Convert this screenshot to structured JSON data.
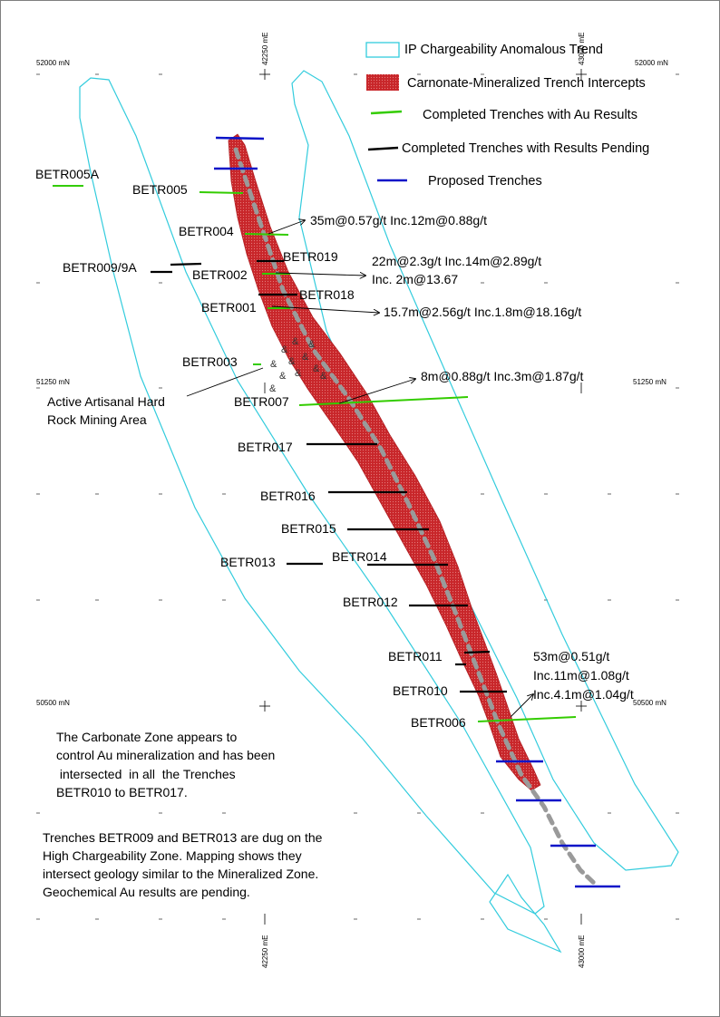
{
  "colors": {
    "ip_outline": "#33ccdd",
    "mineralized": "#c8262a",
    "core_dash": "#999999",
    "au_results": "#33cc00",
    "pending": "#000000",
    "proposed": "#0a14c8"
  },
  "legend": {
    "ip": "IP Chargeability Anomalous Trend",
    "carbonate": "Carnonate-Mineralized Trench Intercepts",
    "completed_au": "Completed Trenches with Au Results",
    "pending": "Completed Trenches with Results Pending",
    "proposed": "Proposed Trenches"
  },
  "grid": {
    "n52000_left": "52000 mN",
    "n52000_right": "52000 mN",
    "n51250_left": "51250 mN",
    "n51250_right": "51250 mN",
    "n50500_left": "50500 mN",
    "n50500_right": "50500 mN",
    "e42250_top": "42250 mE",
    "e43000_top": "43000 mE",
    "e42250_bottom": "42250 mE",
    "e43000_bottom": "43000 mE"
  },
  "trenches": {
    "t005a": "BETR005A",
    "t005": "BETR005",
    "t004": "BETR004",
    "t019": "BETR019",
    "t009": "BETR009/9A",
    "t002": "BETR002",
    "t018": "BETR018",
    "t001": "BETR001",
    "t003": "BETR003",
    "t007": "BETR007",
    "t017": "BETR017",
    "t016": "BETR016",
    "t015": "BETR015",
    "t013": "BETR013",
    "t014": "BETR014",
    "t012": "BETR012",
    "t011": "BETR011",
    "t010": "BETR010",
    "t006": "BETR006"
  },
  "results": {
    "r004": "35m@0.57g/t Inc.12m@0.88g/t",
    "r002_line1": "22m@2.3g/t Inc.14m@2.89g/t",
    "r002_line2": "Inc. 2m@13.67",
    "r001": "15.7m@2.56g/t Inc.1.8m@18.16g/t",
    "r007": "8m@0.88g/t Inc.3m@1.87g/t",
    "r006_line1": "53m@0.51g/t",
    "r006_line2": "Inc.11m@1.08g/t",
    "r006_line3": "Inc.4.1m@1.04g/t"
  },
  "mining_area": {
    "line1": "Active Artisanal Hard",
    "line2": "Rock Mining Area"
  },
  "notes": {
    "carbonate": [
      "The Carbonate Zone appears to",
      "control Au mineralization and has been",
      " intersected  in all  the Trenches",
      "BETR010 to BETR017."
    ],
    "chargeability": [
      "Trenches BETR009 and BETR013 are dug on the",
      "High Chargeability Zone. Mapping shows they",
      "intersect geology similar to the Mineralized Zone.",
      "Geochemical Au results are pending."
    ]
  }
}
